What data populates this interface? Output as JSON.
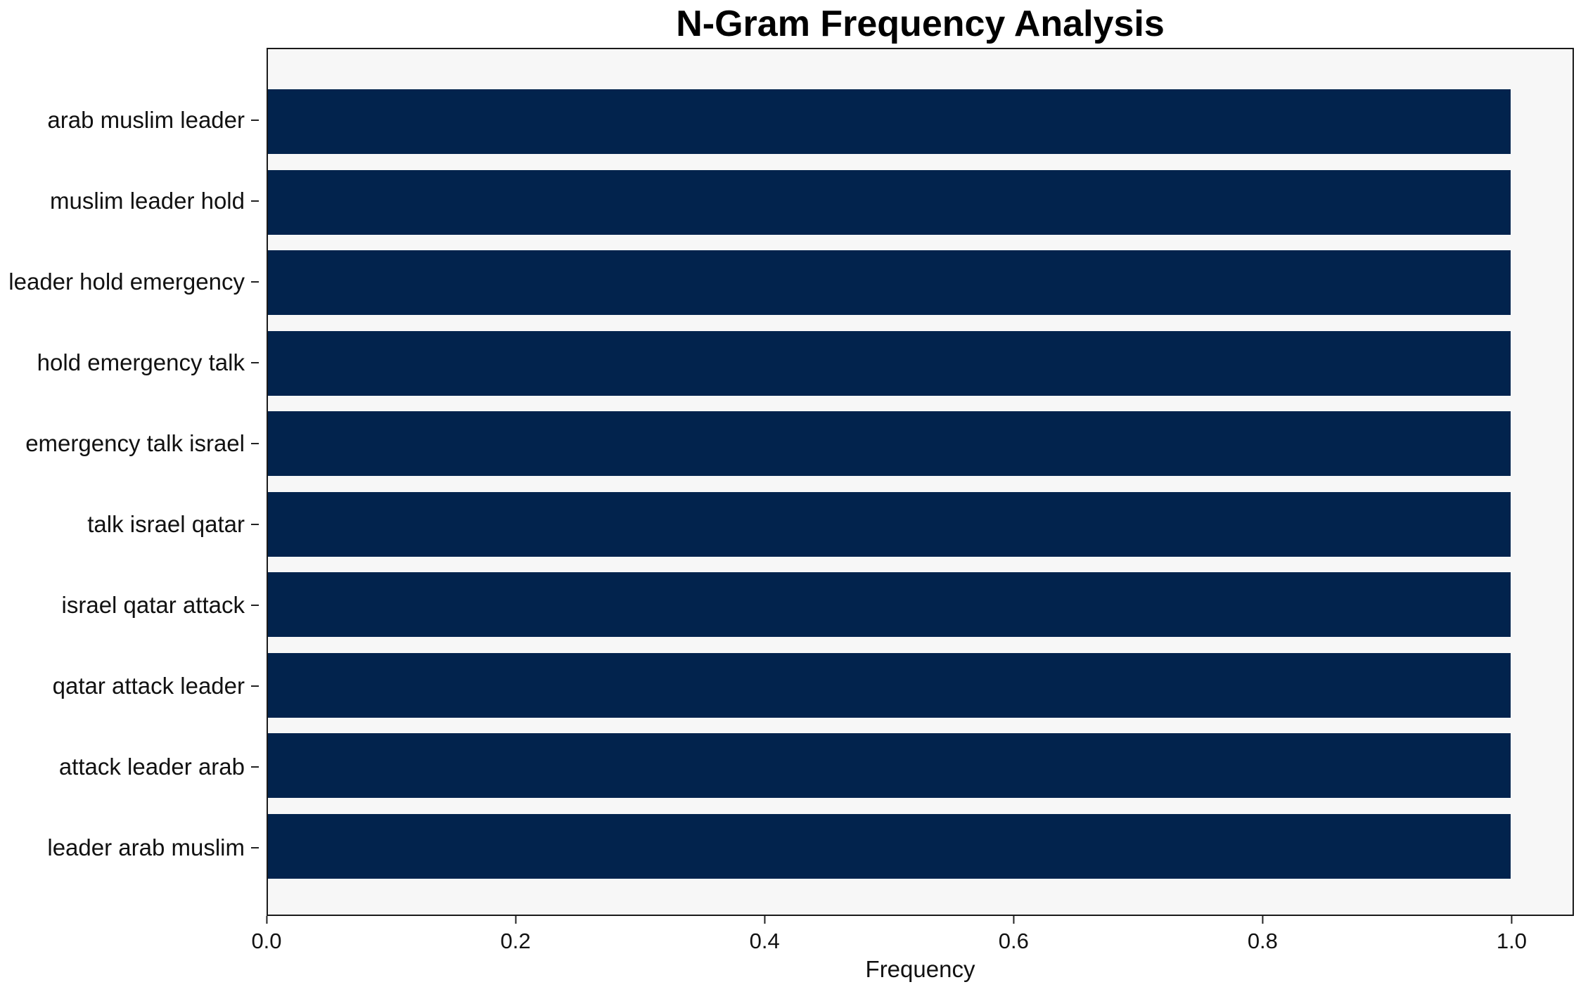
{
  "chart_data": {
    "type": "bar",
    "orientation": "horizontal",
    "title": "N-Gram Frequency Analysis",
    "xlabel": "Frequency",
    "ylabel": "",
    "categories": [
      "arab muslim leader",
      "muslim leader hold",
      "leader hold emergency",
      "hold emergency talk",
      "emergency talk israel",
      "talk israel qatar",
      "israel qatar attack",
      "qatar attack leader",
      "attack leader arab",
      "leader arab muslim"
    ],
    "values": [
      1.0,
      1.0,
      1.0,
      1.0,
      1.0,
      1.0,
      1.0,
      1.0,
      1.0,
      1.0
    ],
    "xlim": [
      0.0,
      1.05
    ],
    "xticks": [
      0.0,
      0.2,
      0.4,
      0.6,
      0.8,
      1.0
    ],
    "xtick_labels": [
      "0.0",
      "0.2",
      "0.4",
      "0.6",
      "0.8",
      "1.0"
    ],
    "grid": false,
    "legend": null,
    "bar_height_fraction": 0.8,
    "colors": {
      "bar": "#02234d",
      "plot_bg": "#f7f7f7",
      "spine": "#1a1a1a",
      "text": "#111111"
    }
  }
}
